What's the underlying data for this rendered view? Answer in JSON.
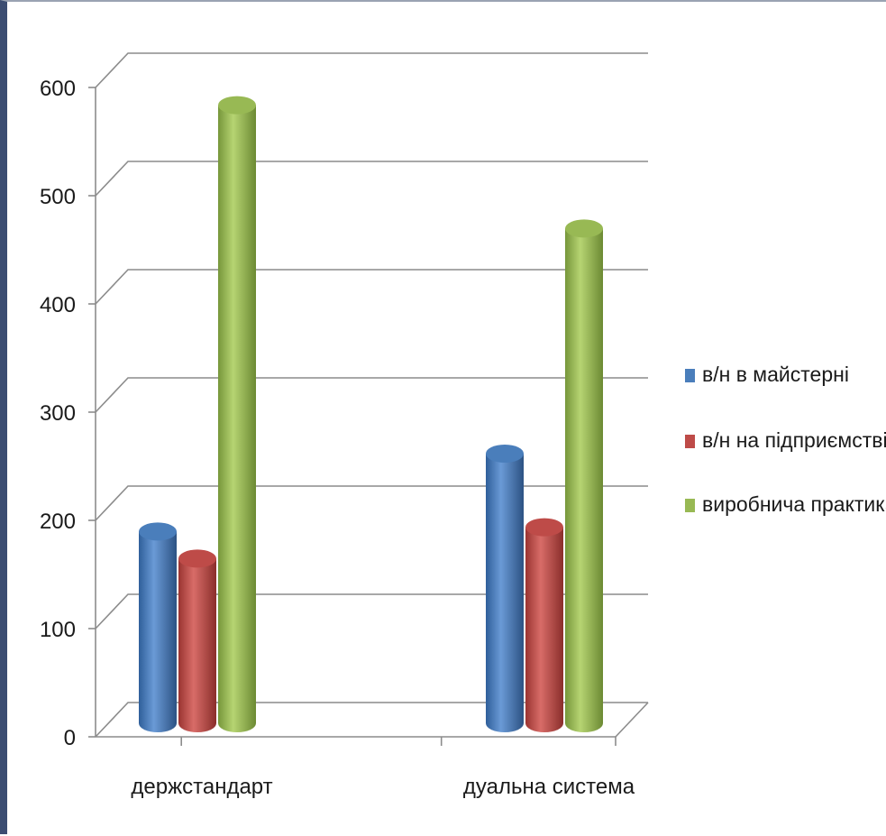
{
  "chart_data": {
    "type": "bar",
    "categories": [
      "держстандарт",
      "дуальна система"
    ],
    "series": [
      {
        "name": "в/н в майстерні",
        "values": [
          178,
          250
        ],
        "color": "#4a7ebb"
      },
      {
        "name": "в/н на підприємстві",
        "values": [
          153,
          182
        ],
        "color": "#be4b48"
      },
      {
        "name": "виробнича практика",
        "values": [
          572,
          458
        ],
        "color": "#98b954"
      }
    ],
    "ylim": [
      0,
      600
    ],
    "yticks": [
      0,
      100,
      200,
      300,
      400,
      500,
      600
    ],
    "title": "",
    "xlabel": "",
    "ylabel": "",
    "grid": true,
    "legend_position": "right",
    "style": "3d-cylinder"
  }
}
